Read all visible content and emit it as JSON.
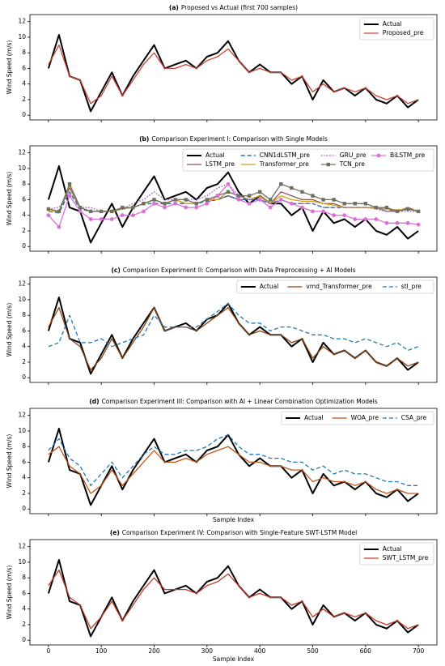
{
  "chart_data": [
    {
      "type": "line",
      "panel": "(a)",
      "title": "Proposed vs Actual (first 700 samples)",
      "ylabel": "Wind Speed (m/s)",
      "x": [
        0,
        20,
        40,
        60,
        80,
        100,
        120,
        140,
        160,
        180,
        200,
        220,
        240,
        260,
        280,
        300,
        320,
        340,
        360,
        380,
        400,
        420,
        440,
        460,
        480,
        500,
        520,
        540,
        560,
        580,
        600,
        620,
        640,
        660,
        680,
        700
      ],
      "xlim": [
        -35,
        735
      ],
      "ylim": [
        -0.6,
        12.9
      ],
      "xticks": [
        0,
        100,
        200,
        300,
        400,
        500,
        600,
        700
      ],
      "xticklabels": false,
      "yticks": [
        0,
        2,
        4,
        6,
        8,
        10,
        12
      ],
      "legend": "upper right",
      "legend_columns": 1,
      "series": [
        {
          "name": "Actual",
          "color": "#000000",
          "width": 2,
          "values": [
            6,
            10.3,
            5,
            4.5,
            0.5,
            3,
            5.5,
            2.5,
            5,
            7,
            9,
            6,
            6.5,
            7,
            6,
            7.5,
            8,
            9.5,
            7,
            5.5,
            6.5,
            5.5,
            5.5,
            4,
            5,
            2,
            4.5,
            3,
            3.5,
            2.5,
            3.5,
            2,
            1.5,
            2.5,
            1,
            2
          ]
        },
        {
          "name": "Proposed_pre",
          "color": "#c8433a",
          "width": 1.3,
          "values": [
            6.5,
            9,
            5,
            4.5,
            1.5,
            2.5,
            5,
            2.5,
            4.5,
            6.5,
            8,
            6,
            6,
            6.5,
            6,
            7,
            7.5,
            8.5,
            7,
            5.5,
            6,
            5.5,
            5.5,
            4.5,
            5,
            3,
            4,
            3,
            3.5,
            3,
            3.5,
            2.5,
            2,
            2.5,
            1.5,
            2
          ]
        }
      ]
    },
    {
      "type": "line",
      "panel": "(b)",
      "title": "Comparison Experiment I: Comparison with Single Models",
      "ylabel": "Wind Speed (m/s)",
      "x": [
        0,
        20,
        40,
        60,
        80,
        100,
        120,
        140,
        160,
        180,
        200,
        220,
        240,
        260,
        280,
        300,
        320,
        340,
        360,
        380,
        400,
        420,
        440,
        460,
        480,
        500,
        520,
        540,
        560,
        580,
        600,
        620,
        640,
        660,
        680,
        700
      ],
      "xlim": [
        -35,
        735
      ],
      "ylim": [
        -0.6,
        12.9
      ],
      "xticks": [
        0,
        100,
        200,
        300,
        400,
        500,
        600,
        700
      ],
      "xticklabels": false,
      "yticks": [
        0,
        2,
        4,
        6,
        8,
        10,
        12
      ],
      "legend": "upper right",
      "legend_columns": 4,
      "series": [
        {
          "name": "Actual",
          "color": "#000000",
          "width": 2,
          "values": [
            6,
            10.3,
            5,
            4.5,
            0.5,
            3,
            5.5,
            2.5,
            5,
            7,
            9,
            6,
            6.5,
            7,
            6,
            7.5,
            8,
            9.5,
            7,
            5.5,
            6.5,
            5.5,
            5.5,
            4,
            5,
            2,
            4.5,
            3,
            3.5,
            2.5,
            3.5,
            2,
            1.5,
            2.5,
            1,
            2
          ]
        },
        {
          "name": "LSTM_pre",
          "color": "#8c564b",
          "width": 1.3,
          "values": [
            4.8,
            4.5,
            7.5,
            5,
            4.5,
            4.5,
            4.5,
            5,
            5,
            5.5,
            6,
            5.5,
            6,
            5.5,
            5.5,
            6,
            6,
            6.5,
            6,
            6,
            6.5,
            5.5,
            7,
            6.5,
            6,
            6,
            5.5,
            5.5,
            5,
            5,
            5,
            5,
            4.5,
            4.5,
            5,
            4.5
          ]
        },
        {
          "name": "CNN1dLSTM_pre",
          "color": "#1f77b4",
          "width": 1.5,
          "style": "dashed",
          "values": [
            4.5,
            4.3,
            7,
            4.8,
            4.5,
            4.5,
            4.5,
            4.8,
            5,
            5.5,
            5.5,
            5.5,
            5.5,
            5.5,
            5.5,
            5.8,
            6,
            6.5,
            6,
            6,
            6,
            5.5,
            6,
            5.5,
            5.5,
            5.5,
            5,
            5,
            5,
            5,
            5,
            5,
            4.8,
            4.5,
            4.8,
            4.5
          ]
        },
        {
          "name": "Transformer_pre",
          "color": "#d4a017",
          "width": 1.3,
          "values": [
            4.5,
            4.5,
            7.8,
            5,
            4.5,
            4.5,
            4.5,
            4.8,
            5,
            5.5,
            6,
            5.5,
            6,
            5.5,
            5.5,
            6,
            6,
            7,
            6.5,
            6,
            6.5,
            5.5,
            6.5,
            6,
            5.8,
            5.8,
            5.5,
            5.3,
            5,
            5,
            5,
            5,
            4.8,
            4.7,
            4.8,
            4.6
          ]
        },
        {
          "name": "GRU_pre",
          "color": "#9467bd",
          "width": 1.5,
          "style": "dotted",
          "values": [
            4.8,
            5,
            7,
            5,
            5,
            4.5,
            4.5,
            4.8,
            5.5,
            6,
            7,
            6,
            6,
            6,
            6,
            6.5,
            7.5,
            8,
            6.5,
            6,
            6,
            5.5,
            6,
            5.5,
            5.5,
            5.5,
            5,
            5,
            5,
            5,
            5,
            4.8,
            4.5,
            4.5,
            4.5,
            4.5
          ]
        },
        {
          "name": "TCN_pre",
          "color": "#6f6f5f",
          "width": 1.3,
          "marker": "square",
          "values": [
            4.8,
            4.5,
            8,
            5,
            4.5,
            4.5,
            4.5,
            5,
            5,
            5.5,
            6,
            5.5,
            6,
            6,
            5.5,
            6,
            6.5,
            7,
            6.5,
            6.5,
            7,
            6,
            8,
            7.5,
            7,
            6.5,
            6,
            6,
            5.5,
            5.5,
            5.5,
            5,
            5,
            4.5,
            4.8,
            4.5
          ]
        },
        {
          "name": "BiLSTM_pre",
          "color": "#da70d6",
          "width": 1.3,
          "marker": "circle",
          "values": [
            4,
            2.5,
            6.5,
            4.5,
            3.5,
            3.5,
            3.5,
            4,
            4,
            4.5,
            5.5,
            5,
            5.5,
            5,
            5,
            5.5,
            6.5,
            8,
            6,
            5.5,
            6,
            5,
            6,
            5.5,
            5,
            4.5,
            4.5,
            4,
            4,
            3.5,
            3.5,
            3.5,
            3,
            3,
            3,
            2.8
          ]
        }
      ]
    },
    {
      "type": "line",
      "panel": "(c)",
      "title": "Comparison Experiment II: Comparison with Data Preprocessing + AI Models",
      "ylabel": "Wind Speed (m/s)",
      "x": [
        0,
        20,
        40,
        60,
        80,
        100,
        120,
        140,
        160,
        180,
        200,
        220,
        240,
        260,
        280,
        300,
        320,
        340,
        360,
        380,
        400,
        420,
        440,
        460,
        480,
        500,
        520,
        540,
        560,
        580,
        600,
        620,
        640,
        660,
        680,
        700
      ],
      "xlim": [
        -35,
        735
      ],
      "ylim": [
        -0.6,
        12.9
      ],
      "xticks": [
        0,
        100,
        200,
        300,
        400,
        500,
        600,
        700
      ],
      "xticklabels": false,
      "yticks": [
        0,
        2,
        4,
        6,
        8,
        10,
        12
      ],
      "legend": "upper right",
      "legend_columns": 3,
      "series": [
        {
          "name": "Actual",
          "color": "#000000",
          "width": 2,
          "values": [
            6,
            10.3,
            5,
            4.5,
            0.5,
            3,
            5.5,
            2.5,
            5,
            7,
            9,
            6,
            6.5,
            7,
            6,
            7.5,
            8,
            9.5,
            7,
            5.5,
            6.5,
            5.5,
            5.5,
            4,
            5,
            2,
            4.5,
            3,
            3.5,
            2.5,
            3.5,
            2,
            1.5,
            2.5,
            1,
            2
          ]
        },
        {
          "name": "vmd_Transformer_pre",
          "color": "#8b4513",
          "width": 1.3,
          "values": [
            6.5,
            9,
            5,
            4,
            1,
            2.5,
            5,
            2.5,
            4.5,
            6.5,
            9,
            6,
            6.5,
            6.5,
            6,
            7,
            8,
            9,
            7,
            5.5,
            6,
            5.5,
            5.5,
            4.5,
            5,
            2.5,
            4,
            3,
            3.5,
            2.5,
            3.5,
            2,
            1.5,
            2.5,
            1.5,
            2
          ]
        },
        {
          "name": "stl_pre",
          "color": "#1f77b4",
          "width": 1.3,
          "style": "dashed",
          "values": [
            4,
            4.5,
            8,
            4.5,
            4.5,
            5,
            4,
            4.5,
            5,
            5.5,
            8,
            6.5,
            6.5,
            6.5,
            6.5,
            7.5,
            8.5,
            9.5,
            8,
            7,
            7,
            6,
            6.5,
            6.5,
            6,
            5.5,
            5.5,
            5,
            5,
            4.5,
            5,
            4.5,
            4,
            4.5,
            3.5,
            4
          ]
        }
      ]
    },
    {
      "type": "line",
      "panel": "(d)",
      "title": "Comparison Experiment III: Comparison with AI + Linear Combination Optimization Models",
      "ylabel": "Wind Speed (m/s)",
      "xlabel": "Sample Index",
      "x": [
        0,
        20,
        40,
        60,
        80,
        100,
        120,
        140,
        160,
        180,
        200,
        220,
        240,
        260,
        280,
        300,
        320,
        340,
        360,
        380,
        400,
        420,
        440,
        460,
        480,
        500,
        520,
        540,
        560,
        580,
        600,
        620,
        640,
        660,
        680,
        700
      ],
      "xlim": [
        -35,
        735
      ],
      "ylim": [
        -0.6,
        12.9
      ],
      "xticks": [
        0,
        100,
        200,
        300,
        400,
        500,
        600,
        700
      ],
      "xticklabels": false,
      "yticks": [
        0,
        2,
        4,
        6,
        8,
        10,
        12
      ],
      "legend": "upper right",
      "legend_columns": 3,
      "series": [
        {
          "name": "Actual",
          "color": "#000000",
          "width": 2,
          "values": [
            6,
            10.3,
            5,
            4.5,
            0.5,
            3,
            5.5,
            2.5,
            5,
            7,
            9,
            6,
            6.5,
            7,
            6,
            7.5,
            8,
            9.5,
            7,
            5.5,
            6.5,
            5.5,
            5.5,
            4,
            5,
            2,
            4.5,
            3,
            3.5,
            2.5,
            3.5,
            2,
            1.5,
            2.5,
            1,
            2
          ]
        },
        {
          "name": "WOA_pre",
          "color": "#c0561d",
          "width": 1.3,
          "values": [
            7,
            8,
            5.5,
            4.5,
            2,
            3,
            5,
            3,
            4.5,
            6,
            7.5,
            6,
            6,
            6.5,
            6,
            7,
            7.5,
            8,
            7,
            6,
            6,
            5.5,
            5.5,
            5,
            5,
            3.5,
            4,
            3.5,
            3.5,
            3,
            3.5,
            2.5,
            2,
            2.5,
            2,
            2
          ]
        },
        {
          "name": "CSA_pre",
          "color": "#1f77b4",
          "width": 1.3,
          "style": "dashed",
          "values": [
            7.5,
            9,
            6.5,
            5.5,
            3,
            4.5,
            6,
            4,
            5.5,
            7,
            8,
            7,
            7,
            7.5,
            7.5,
            8,
            9,
            9.5,
            8,
            7,
            7,
            6.5,
            6.5,
            6,
            6,
            5,
            5.5,
            4.5,
            5,
            4.5,
            4.5,
            4,
            3.5,
            3.5,
            3,
            3
          ]
        }
      ]
    },
    {
      "type": "line",
      "panel": "(e)",
      "title": "Comparison Experiment IV: Comparison with Single-Feature SWT-LSTM Model",
      "ylabel": "Wind Speed (m/s)",
      "xlabel": "Sample Index",
      "x": [
        0,
        20,
        40,
        60,
        80,
        100,
        120,
        140,
        160,
        180,
        200,
        220,
        240,
        260,
        280,
        300,
        320,
        340,
        360,
        380,
        400,
        420,
        440,
        460,
        480,
        500,
        520,
        540,
        560,
        580,
        600,
        620,
        640,
        660,
        680,
        700
      ],
      "xlim": [
        -35,
        735
      ],
      "ylim": [
        -0.6,
        12.9
      ],
      "xticks": [
        0,
        100,
        200,
        300,
        400,
        500,
        600,
        700
      ],
      "yticks": [
        0,
        2,
        4,
        6,
        8,
        10,
        12
      ],
      "legend": "upper right",
      "legend_columns": 1,
      "series": [
        {
          "name": "Actual",
          "color": "#000000",
          "width": 2,
          "values": [
            6,
            10.3,
            5,
            4.5,
            0.5,
            3,
            5.5,
            2.5,
            5,
            7,
            9,
            6,
            6.5,
            7,
            6,
            7.5,
            8,
            9.5,
            7,
            5.5,
            6.5,
            5.5,
            5.5,
            4,
            5,
            2,
            4.5,
            3,
            3.5,
            2.5,
            3.5,
            2,
            1.5,
            2.5,
            1,
            2
          ]
        },
        {
          "name": "SWT_LSTM_pre",
          "color": "#c0392b",
          "width": 1.3,
          "values": [
            7,
            9,
            5.5,
            4.5,
            1.5,
            3,
            5,
            2.5,
            4.5,
            6.5,
            8,
            6.5,
            6.5,
            6.5,
            6,
            7,
            7.5,
            8.5,
            7,
            5.5,
            6,
            5.5,
            5.5,
            4.5,
            5,
            3,
            4,
            3,
            3.5,
            3,
            3.5,
            2.5,
            2,
            2.5,
            1.5,
            2
          ]
        }
      ]
    }
  ]
}
